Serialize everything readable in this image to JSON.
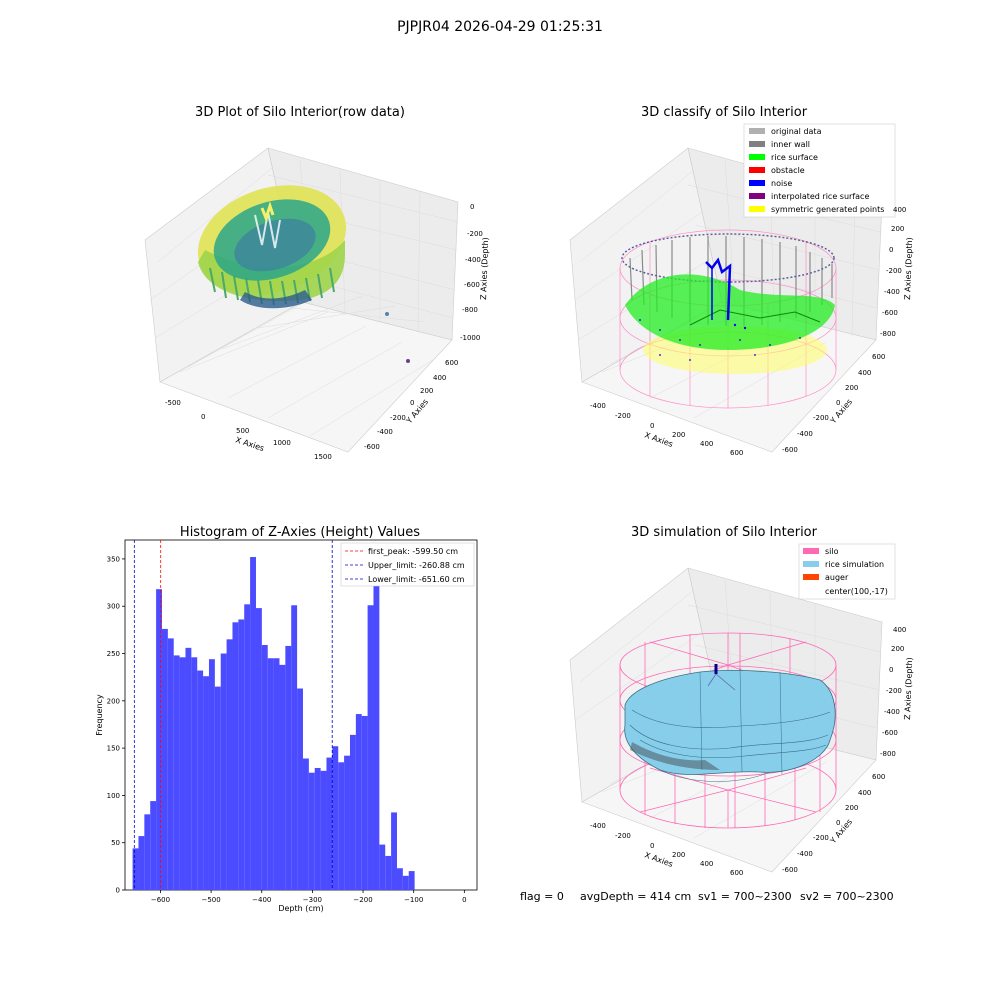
{
  "figure": {
    "suptitle": "PJPJR04 2026-04-29 01:25:31",
    "footer": {
      "flag": "flag = 0",
      "avg_depth": "avgDepth = 414 cm",
      "sv1": "sv1 = 700~2300",
      "sv2": "sv2 = 700~2300"
    }
  },
  "colors": {
    "grid": "#dddddd",
    "pane": "#f2f2f2",
    "histogram": "#4b4bff",
    "first_peak_line": "#ff0000",
    "limit_line": "#0000cc"
  },
  "chart_data": [
    {
      "id": "raw",
      "type": "scatter3d",
      "title": "3D Plot of Silo Interior(row data)",
      "xlabel": "X Axies",
      "ylabel": "Y Axies",
      "zlabel": "Z Axies (Depth)",
      "x_ticks": [
        "-500",
        "0",
        "500",
        "1000",
        "1500"
      ],
      "y_ticks": [
        "600",
        "400",
        "200",
        "0",
        "-200",
        "-400",
        "-600"
      ],
      "z_ticks": [
        "0",
        "-200",
        "-400",
        "-600",
        "-800",
        "-1000"
      ]
    },
    {
      "id": "classify",
      "type": "scatter3d",
      "title": "3D classify of Silo Interior",
      "xlabel": "X Axies",
      "ylabel": "Y Axies",
      "zlabel": "Z Axies (Depth)",
      "x_ticks": [
        "-400",
        "-200",
        "0",
        "200",
        "400",
        "600"
      ],
      "y_ticks": [
        "600",
        "400",
        "200",
        "0",
        "-200",
        "-400",
        "-600"
      ],
      "z_ticks": [
        "400",
        "200",
        "0",
        "-200",
        "-400",
        "-600",
        "-800"
      ],
      "legend": [
        {
          "label": "original data",
          "color": "#b0b0b0"
        },
        {
          "label": "inner wall",
          "color": "#808080"
        },
        {
          "label": "rice surface",
          "color": "#00ff00"
        },
        {
          "label": "obstacle",
          "color": "#ff0000"
        },
        {
          "label": "noise",
          "color": "#0000ff"
        },
        {
          "label": "interpolated rice surface",
          "color": "#800080"
        },
        {
          "label": "symmetric generated points",
          "color": "#ffff00"
        }
      ]
    },
    {
      "id": "histogram",
      "type": "bar",
      "title": "Histogram of Z-Axies (Height) Values",
      "xlabel": "Depth (cm)",
      "ylabel": "Frequency",
      "xlim": [
        -670,
        25
      ],
      "ylim": [
        0,
        370
      ],
      "x_ticks": [
        -600,
        -500,
        -400,
        -300,
        -200,
        -100,
        0
      ],
      "y_ticks": [
        0,
        50,
        100,
        150,
        200,
        250,
        300,
        350
      ],
      "bin_start": -655,
      "bin_width": 11.6,
      "values": [
        44,
        57,
        80,
        94,
        318,
        276,
        266,
        248,
        246,
        256,
        246,
        232,
        226,
        244,
        215,
        250,
        265,
        283,
        286,
        302,
        352,
        298,
        259,
        245,
        245,
        238,
        258,
        301,
        213,
        139,
        124,
        129,
        126,
        140,
        152,
        135,
        142,
        164,
        186,
        184,
        301,
        336,
        48,
        36,
        82,
        23,
        15,
        20
      ],
      "vlines": [
        {
          "label": "first_peak: -599.50 cm",
          "x": -599.5,
          "color": "#ff0000"
        },
        {
          "label": "Upper_limit: -260.88 cm",
          "x": -260.88,
          "color": "#0000cc"
        },
        {
          "label": "Lower_limit: -651.60 cm",
          "x": -651.6,
          "color": "#0000cc"
        }
      ]
    },
    {
      "id": "simulation",
      "type": "surface3d",
      "title": "3D simulation of Silo Interior",
      "xlabel": "X Axies",
      "ylabel": "Y Axies",
      "zlabel": "Z Axies (Depth)",
      "x_ticks": [
        "-400",
        "-200",
        "0",
        "200",
        "400",
        "600"
      ],
      "y_ticks": [
        "600",
        "400",
        "200",
        "0",
        "-200",
        "-400",
        "-600"
      ],
      "z_ticks": [
        "400",
        "200",
        "0",
        "-200",
        "-400",
        "-600",
        "-800"
      ],
      "legend": [
        {
          "label": "silo",
          "color": "#ff69b4"
        },
        {
          "label": "rice simulation",
          "color": "#87ceeb"
        },
        {
          "label": "auger",
          "color": "#ff4500"
        },
        {
          "label": "center(100,-17)",
          "color": ""
        }
      ]
    }
  ]
}
